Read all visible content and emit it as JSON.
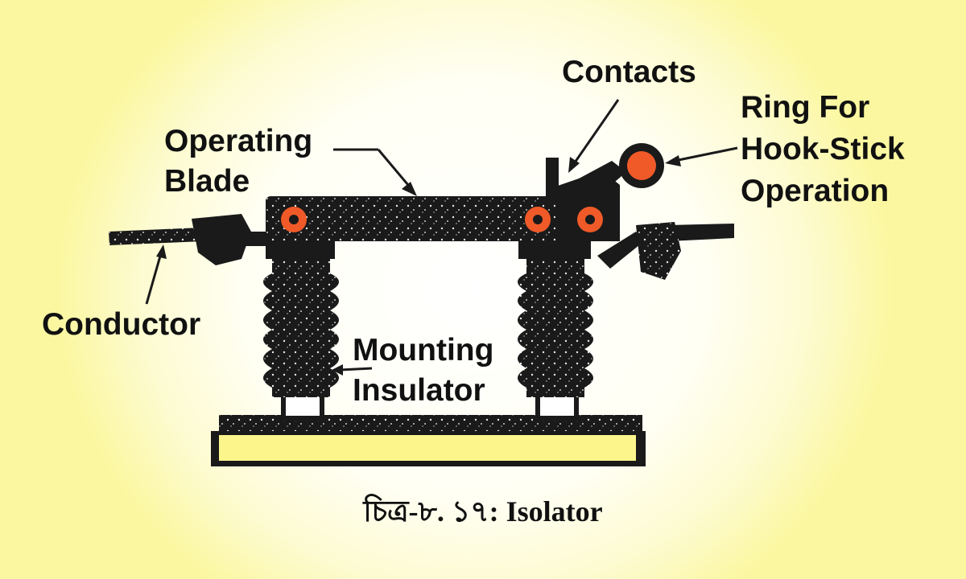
{
  "labels": {
    "contacts": "Contacts",
    "ring_line1": "Ring For",
    "ring_line2": "Hook-Stick",
    "ring_line3": "Operation",
    "blade_line1": "Operating",
    "blade_line2": "Blade",
    "conductor": "Conductor",
    "insulator_line1": "Mounting",
    "insulator_line2": "Insulator"
  },
  "caption": "চিত্র-৮. ১৭: Isolator",
  "colors": {
    "background": "#fbf7a0",
    "structure": "#1a1a1a",
    "base_plate": "#fbf58c",
    "pin": "#f05a28",
    "ring": "#f05a28",
    "text": "#111111"
  }
}
